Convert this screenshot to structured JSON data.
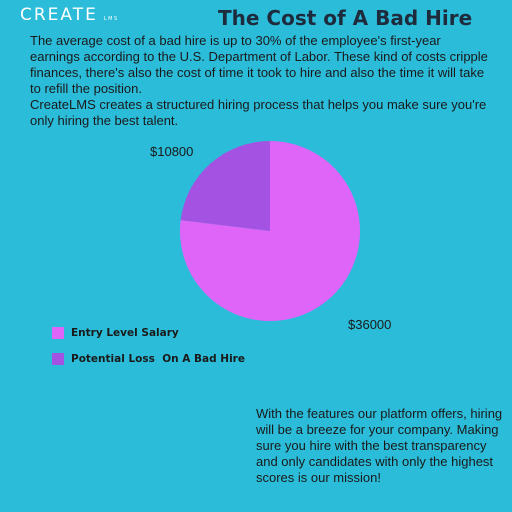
{
  "header": {
    "logo_main": "CREATE",
    "logo_sub": "LMS",
    "title": "The Cost of A Bad Hire"
  },
  "intro": {
    "paragraph_1": "The average cost of a bad hire is up to 30% of the employee's first-year earnings according to the U.S. Department of Labor. These kind of costs cripple finances, there's also the cost of time it took to hire and also the time it will take to refill the position.",
    "paragraph_2": "CreateLMS creates a structured hiring process that helps you make sure you're only hiring the best talent."
  },
  "chart_data": {
    "type": "pie",
    "title": "",
    "slices": [
      {
        "name": "Entry Level Salary",
        "value": 36000,
        "label": "$36000",
        "color": "#df64f8"
      },
      {
        "name": "Potential Loss  On A Bad Hire",
        "value": 10800,
        "label": "$10800",
        "color": "#a452e2"
      }
    ],
    "legend_position": "bottom-left"
  },
  "outro": {
    "text": "With the features our platform offers, hiring will be a breeze for your company. Making sure you hire with the best transparency and only candidates with only the highest scores is our mission!"
  }
}
